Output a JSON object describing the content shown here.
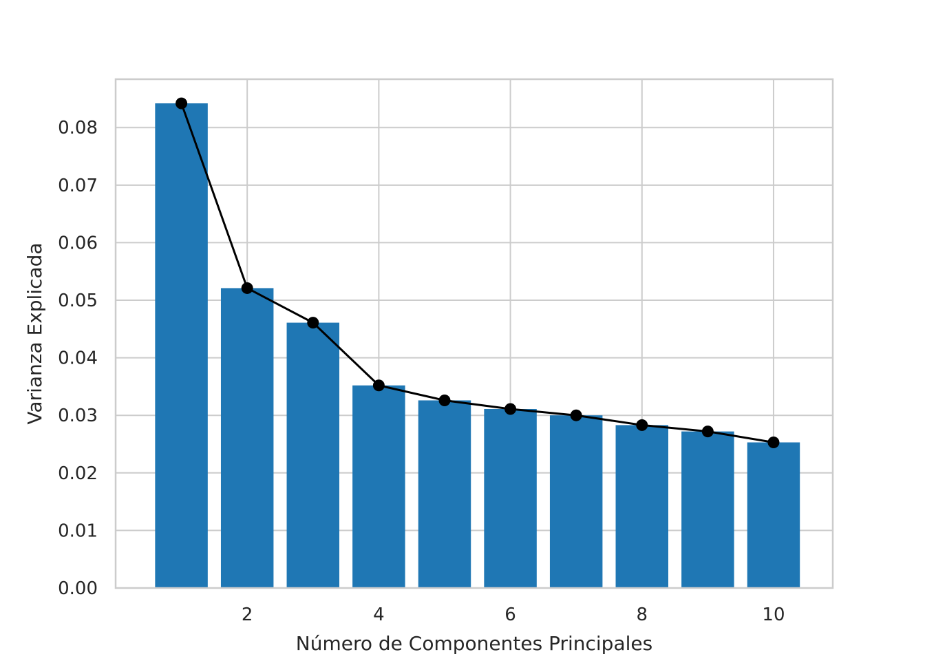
{
  "chart_data": {
    "type": "bar",
    "title": "",
    "xlabel": "Número de Componentes Principales",
    "ylabel": "Varianza Explicada",
    "x": [
      1,
      2,
      3,
      4,
      5,
      6,
      7,
      8,
      9,
      10
    ],
    "values": [
      0.0842,
      0.0521,
      0.0461,
      0.0352,
      0.0326,
      0.0311,
      0.03,
      0.0283,
      0.0272,
      0.0253
    ],
    "line_overlay": {
      "color": "#000000",
      "marker": "circle",
      "values": [
        0.0842,
        0.0521,
        0.0461,
        0.0352,
        0.0326,
        0.0311,
        0.03,
        0.0283,
        0.0272,
        0.0253
      ]
    },
    "xlim": [
      0.0,
      10.9
    ],
    "ylim": [
      0,
      0.0884
    ],
    "xticks": [
      2,
      4,
      6,
      8,
      10
    ],
    "xtick_labels": [
      "2",
      "4",
      "6",
      "8",
      "10"
    ],
    "yticks": [
      0,
      0.01,
      0.02,
      0.03,
      0.04,
      0.05,
      0.06,
      0.07,
      0.08
    ],
    "ytick_labels": [
      "0.00",
      "0.01",
      "0.02",
      "0.03",
      "0.04",
      "0.05",
      "0.06",
      "0.07",
      "0.08"
    ],
    "grid": true,
    "bar_color": "#1f77b4",
    "grid_color": "#cccccc"
  }
}
